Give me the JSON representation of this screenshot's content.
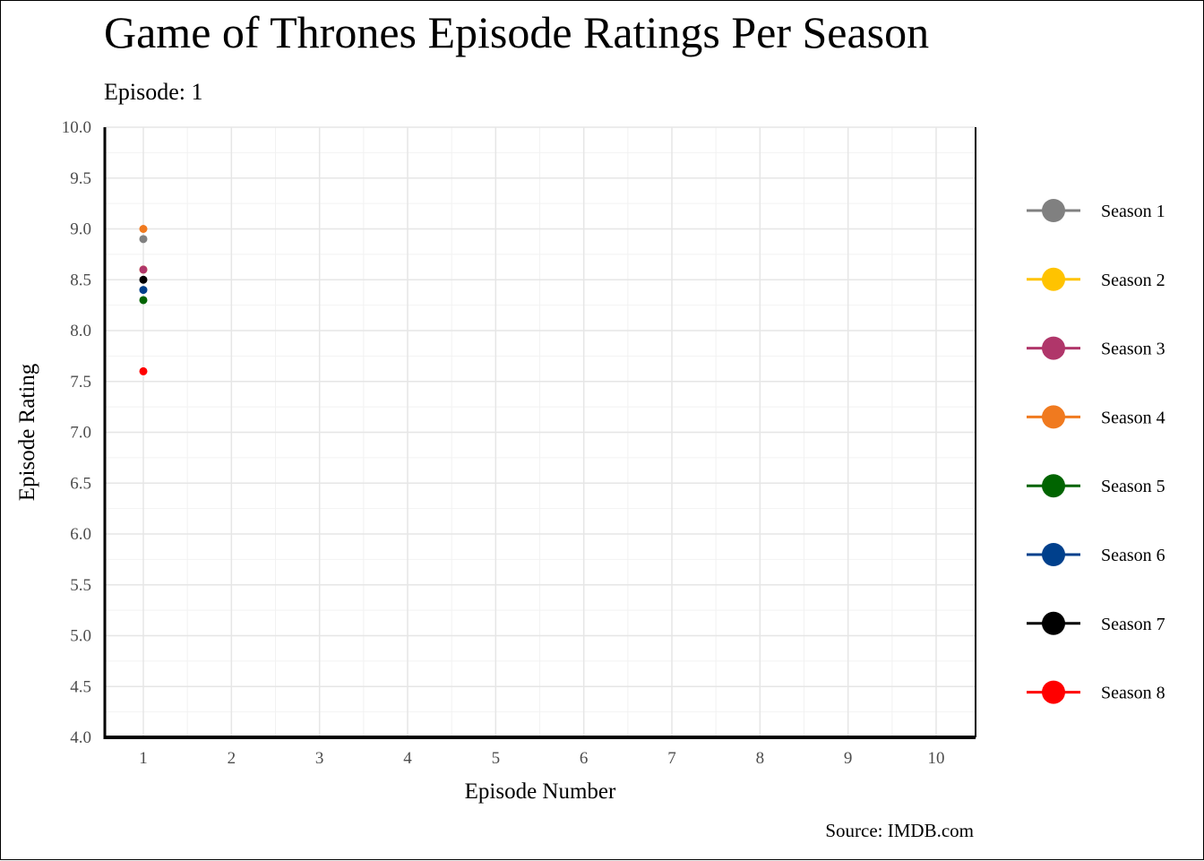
{
  "chart_data": {
    "type": "scatter",
    "title": "Game of Thrones Episode Ratings Per Season",
    "subtitle": "Episode: 1",
    "caption": "Source: IMDB.com",
    "xlabel": "Episode Number",
    "ylabel": "Episode Rating",
    "xlim": [
      1,
      10
    ],
    "ylim": [
      4.0,
      10.0
    ],
    "xticks": [
      "1",
      "2",
      "3",
      "4",
      "5",
      "6",
      "7",
      "8",
      "9",
      "10"
    ],
    "yticks": [
      "4.0",
      "4.5",
      "5.0",
      "5.5",
      "6.0",
      "6.5",
      "7.0",
      "7.5",
      "8.0",
      "8.5",
      "9.0",
      "9.5",
      "10.0"
    ],
    "grid": true,
    "legend_position": "right",
    "series": [
      {
        "name": "Season 1",
        "color": "#808080",
        "x": [
          1
        ],
        "y": [
          8.9
        ]
      },
      {
        "name": "Season 2",
        "color": "#FFC300",
        "x": [
          1
        ],
        "y": [
          8.6
        ]
      },
      {
        "name": "Season 3",
        "color": "#B0366A",
        "x": [
          1
        ],
        "y": [
          8.6
        ]
      },
      {
        "name": "Season 4",
        "color": "#F07A1F",
        "x": [
          1
        ],
        "y": [
          9.0
        ]
      },
      {
        "name": "Season 5",
        "color": "#006400",
        "x": [
          1
        ],
        "y": [
          8.3
        ]
      },
      {
        "name": "Season 6",
        "color": "#00408C",
        "x": [
          1
        ],
        "y": [
          8.4
        ]
      },
      {
        "name": "Season 7",
        "color": "#000000",
        "x": [
          1
        ],
        "y": [
          8.5
        ]
      },
      {
        "name": "Season 8",
        "color": "#FF0000",
        "x": [
          1
        ],
        "y": [
          7.6
        ]
      }
    ]
  }
}
